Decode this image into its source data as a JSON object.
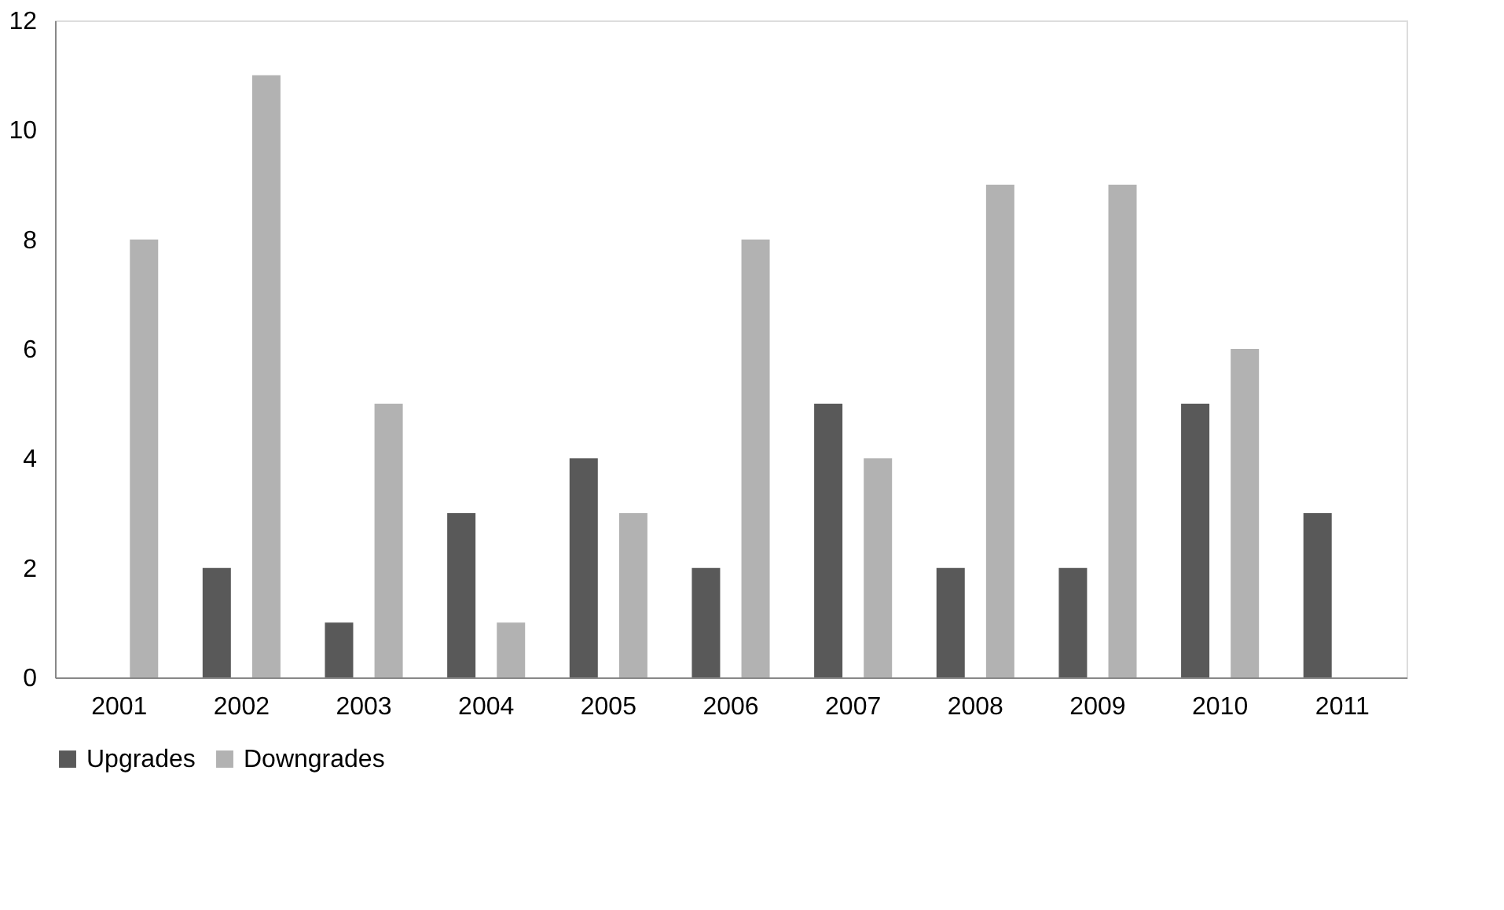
{
  "chart_data": {
    "type": "bar",
    "categories": [
      "2001",
      "2002",
      "2003",
      "2004",
      "2005",
      "2006",
      "2007",
      "2008",
      "2009",
      "2010",
      "2011"
    ],
    "series": [
      {
        "name": "Upgrades",
        "color": "#595959",
        "values": [
          0,
          2,
          1,
          3,
          4,
          2,
          5,
          2,
          2,
          5,
          3
        ]
      },
      {
        "name": "Downgrades",
        "color": "#b2b2b2",
        "values": [
          8,
          11,
          5,
          1,
          3,
          8,
          4,
          9,
          9,
          6,
          0
        ]
      }
    ],
    "ylim": [
      0,
      12
    ],
    "yticks": [
      0,
      2,
      4,
      6,
      8,
      10,
      12
    ],
    "grid": false,
    "legend": "bottom"
  }
}
